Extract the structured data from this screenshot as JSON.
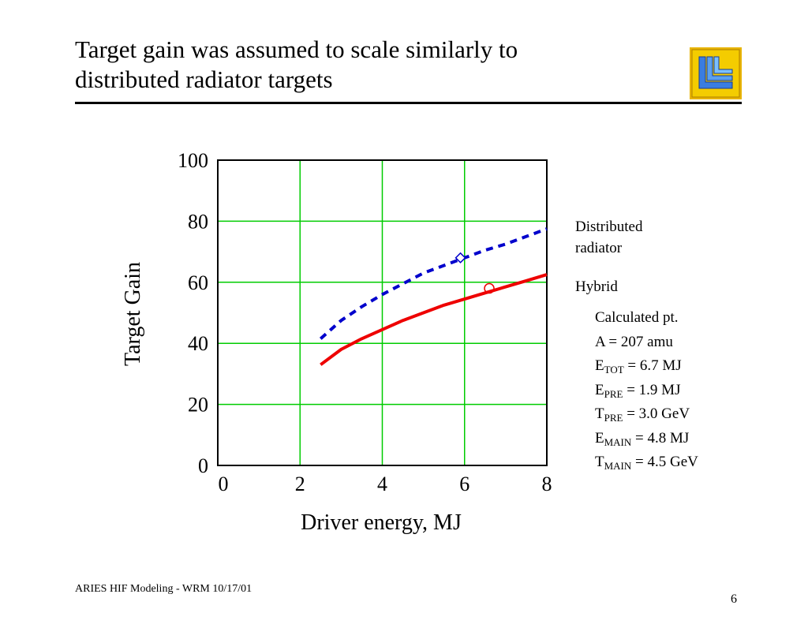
{
  "slide": {
    "title_line1": "Target gain was assumed to scale similarly to",
    "title_line2": "distributed radiator targets",
    "footer": "ARIES HIF Modeling - WRM 10/17/01",
    "page_number": "6"
  },
  "legend": {
    "distributed_line1": "Distributed",
    "distributed_line2": "radiator",
    "hybrid": "Hybrid"
  },
  "calculated_point": {
    "heading": "Calculated pt.",
    "mass": "A = 207 amu",
    "params": [
      {
        "sym": "E",
        "sub": "TOT",
        "value": " = 6.7 MJ"
      },
      {
        "sym": "E",
        "sub": "PRE",
        "value": " = 1.9 MJ"
      },
      {
        "sym": "T",
        "sub": "PRE",
        "value": " = 3.0 GeV"
      },
      {
        "sym": "E",
        "sub": "MAIN",
        "value": " = 4.8 MJ"
      },
      {
        "sym": "T",
        "sub": "MAIN",
        "value": " = 4.5 GeV"
      }
    ]
  },
  "colors": {
    "grid": "#00cc00",
    "distributed": "#0000cc",
    "hybrid": "#ee0000",
    "axis": "#000000"
  },
  "chart_data": {
    "type": "line",
    "title": "",
    "xlabel": "Driver energy, MJ",
    "ylabel": "Target Gain",
    "xlim": [
      0,
      8
    ],
    "ylim": [
      0,
      100
    ],
    "xticks": [
      0,
      2,
      4,
      6,
      8
    ],
    "yticks": [
      0,
      20,
      40,
      60,
      80,
      100
    ],
    "grid": true,
    "series": [
      {
        "name": "Distributed radiator",
        "style": "dashed",
        "x": [
          2.5,
          3,
          3.5,
          4,
          4.5,
          5,
          5.5,
          6,
          6.5,
          7,
          7.5,
          8
        ],
        "y": [
          41.5,
          47.5,
          52,
          56,
          59.5,
          63,
          65.5,
          68,
          70.5,
          72.5,
          75,
          77.5
        ]
      },
      {
        "name": "Hybrid",
        "style": "solid",
        "x": [
          2.5,
          3,
          3.5,
          4,
          4.5,
          5,
          5.5,
          6,
          6.5,
          7,
          7.5,
          8
        ],
        "y": [
          33,
          38,
          41.5,
          44.5,
          47.5,
          50,
          52.5,
          54.5,
          56.5,
          58.5,
          60.5,
          62.5
        ]
      }
    ],
    "markers": [
      {
        "series": "Distributed radiator",
        "shape": "diamond",
        "x": 5.9,
        "y": 68
      },
      {
        "series": "Hybrid",
        "shape": "circle",
        "x": 6.6,
        "y": 58
      }
    ]
  }
}
